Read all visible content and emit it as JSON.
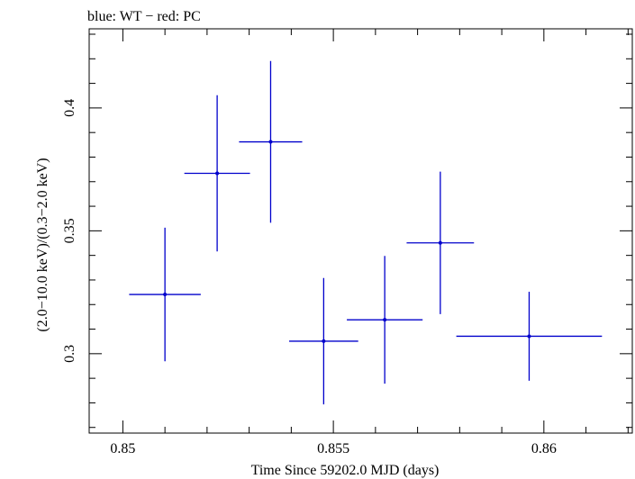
{
  "chart_data": {
    "type": "scatter",
    "title": "blue: WT − red: PC",
    "xlabel": "Time Since 59202.0 MJD (days)",
    "ylabel": "(2.0−10.0 keV)/(0.3−2.0 keV)",
    "xlim": [
      0.8492,
      0.8621
    ],
    "ylim": [
      0.2677,
      0.4322
    ],
    "xticks": [
      {
        "value": 0.85,
        "label": "0.85"
      },
      {
        "value": 0.855,
        "label": "0.855"
      },
      {
        "value": 0.86,
        "label": "0.86"
      }
    ],
    "yticks": [
      {
        "value": 0.3,
        "label": "0.3"
      },
      {
        "value": 0.35,
        "label": "0.35"
      },
      {
        "value": 0.4,
        "label": "0.4"
      }
    ],
    "series": [
      {
        "name": "WT",
        "color": "#0000cc",
        "points": [
          {
            "x": 0.851,
            "y": 0.3241,
            "xerr": 0.00085,
            "yerr": 0.0272
          },
          {
            "x": 0.85224,
            "y": 0.3734,
            "xerr": 0.00078,
            "yerr": 0.0318
          },
          {
            "x": 0.85351,
            "y": 0.3862,
            "xerr": 0.00075,
            "yerr": 0.0329
          },
          {
            "x": 0.85477,
            "y": 0.3051,
            "xerr": 0.00082,
            "yerr": 0.0257
          },
          {
            "x": 0.85622,
            "y": 0.3138,
            "xerr": 0.0009,
            "yerr": 0.026
          },
          {
            "x": 0.85754,
            "y": 0.3451,
            "xerr": 0.0008,
            "yerr": 0.029
          },
          {
            "x": 0.85965,
            "y": 0.3071,
            "xerr": 0.00173,
            "yerr": 0.0181
          }
        ]
      }
    ]
  }
}
